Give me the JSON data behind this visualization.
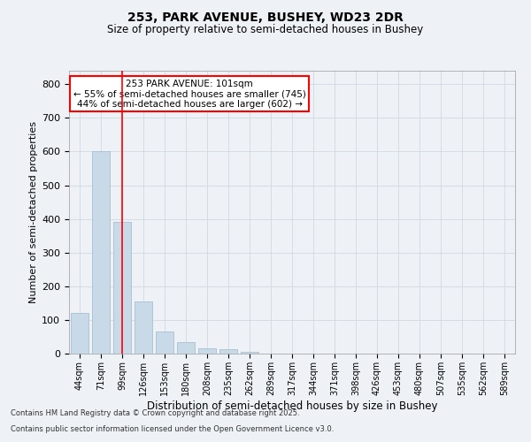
{
  "title_line1": "253, PARK AVENUE, BUSHEY, WD23 2DR",
  "title_line2": "Size of property relative to semi-detached houses in Bushey",
  "xlabel": "Distribution of semi-detached houses by size in Bushey",
  "ylabel": "Number of semi-detached properties",
  "categories": [
    "44sqm",
    "71sqm",
    "99sqm",
    "126sqm",
    "153sqm",
    "180sqm",
    "208sqm",
    "235sqm",
    "262sqm",
    "289sqm",
    "317sqm",
    "344sqm",
    "371sqm",
    "398sqm",
    "426sqm",
    "453sqm",
    "480sqm",
    "507sqm",
    "535sqm",
    "562sqm",
    "589sqm"
  ],
  "values": [
    120,
    600,
    390,
    155,
    65,
    35,
    15,
    12,
    5,
    0,
    0,
    0,
    0,
    0,
    0,
    0,
    0,
    0,
    0,
    0,
    0
  ],
  "bar_color": "#c8d9e8",
  "bar_edge_color": "#a0b8cc",
  "vline_x": 2,
  "vline_color": "red",
  "annotation_title": "253 PARK AVENUE: 101sqm",
  "annotation_line1": "← 55% of semi-detached houses are smaller (745)",
  "annotation_line2": "44% of semi-detached houses are larger (602) →",
  "annotation_box_color": "white",
  "annotation_box_edge": "red",
  "ylim": [
    0,
    840
  ],
  "yticks": [
    0,
    100,
    200,
    300,
    400,
    500,
    600,
    700,
    800
  ],
  "footer_line1": "Contains HM Land Registry data © Crown copyright and database right 2025.",
  "footer_line2": "Contains public sector information licensed under the Open Government Licence v3.0.",
  "background_color": "#eef2f6",
  "plot_background": "#eef2f6",
  "grid_color": "#d0d8e4"
}
